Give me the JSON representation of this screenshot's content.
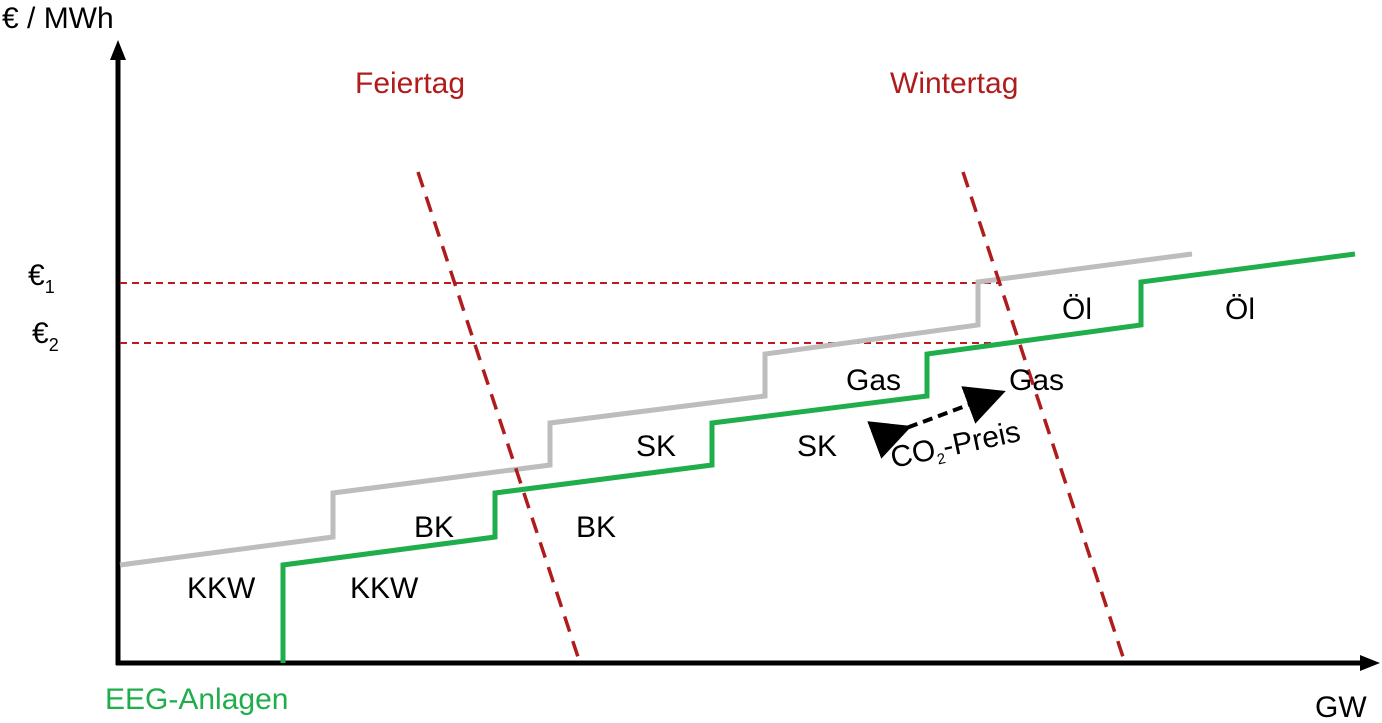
{
  "axes": {
    "y_label": "€ / MWh",
    "x_label": "GW",
    "origin_label": "EEG-Anlagen"
  },
  "price_levels": [
    {
      "symbol": "€",
      "sub": "1"
    },
    {
      "symbol": "€",
      "sub": "2"
    }
  ],
  "demand_curves": [
    {
      "label": "Feiertag"
    },
    {
      "label": "Wintertag"
    }
  ],
  "supply_curves": [
    {
      "name": "",
      "segments": [
        "KKW",
        "BK",
        "SK",
        "Gas",
        "Öl"
      ]
    },
    {
      "name": "EEG-Anlagen",
      "segments": [
        "KKW",
        "BK",
        "SK",
        "Gas",
        "Öl"
      ]
    }
  ],
  "annotation": {
    "co": "CO",
    "sub": "2",
    "rest": "-Preis"
  },
  "colors": {
    "axis": "#000000",
    "reference_supply": "#bdbdbd",
    "eeg_supply": "#1fae4b",
    "demand": "#b01c1c",
    "price_line": "#c0181c"
  }
}
